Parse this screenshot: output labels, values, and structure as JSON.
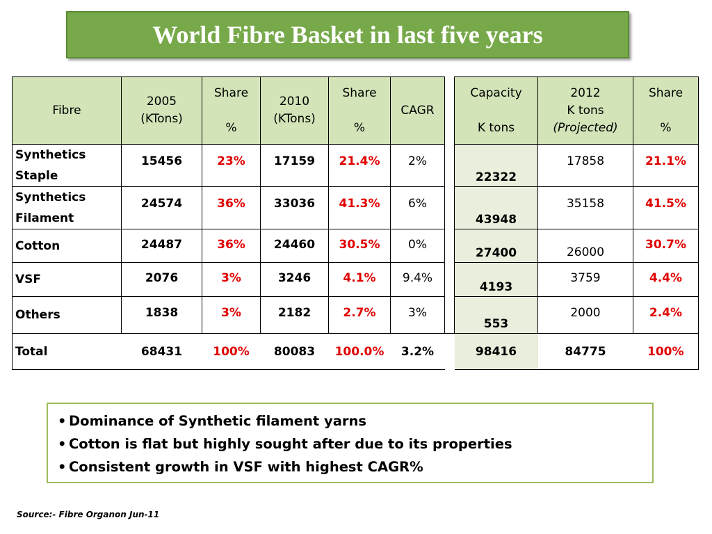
{
  "title": "World Fibre Basket in last five years",
  "colors": {
    "title_bg": "#77a94a",
    "header_bg": "#d3e4b8",
    "capacity_bg": "#e8efdc",
    "share_red": "#e00000",
    "notes_border": "#9bbb59"
  },
  "table": {
    "headers": {
      "fibre": "Fibre",
      "y2005_l1": "2005",
      "y2005_l2": "(KTons)",
      "share_l1": "Share",
      "share_l2": "%",
      "y2010_l1": "2010",
      "y2010_l2": "(KTons)",
      "cagr": "CAGR",
      "capacity_l1": "Capacity",
      "capacity_l2": "K tons",
      "y2012_l1": "2012",
      "y2012_l2": "K tons",
      "y2012_l3": "(Projected)"
    },
    "rows": [
      {
        "fibre_l1": "Synthetics",
        "fibre_l2": "Staple",
        "v2005": "15456",
        "s2005": "23%",
        "v2010": "17159",
        "s2010": "21.4%",
        "cagr": "2%",
        "capacity": "22322",
        "v2012": "17858",
        "s2012": "21.1%"
      },
      {
        "fibre_l1": "Synthetics",
        "fibre_l2": "Filament",
        "v2005": "24574",
        "s2005": "36%",
        "v2010": "33036",
        "s2010": "41.3%",
        "cagr": "6%",
        "capacity": "43948",
        "v2012": "35158",
        "s2012": "41.5%"
      },
      {
        "fibre": "Cotton",
        "v2005": "24487",
        "s2005": "36%",
        "v2010": "24460",
        "s2010": "30.5%",
        "cagr": "0%",
        "capacity": "27400",
        "v2012": "26000",
        "s2012": "30.7%"
      },
      {
        "fibre": "VSF",
        "v2005": "2076",
        "s2005": "3%",
        "v2010": "3246",
        "s2010": "4.1%",
        "cagr": "9.4%",
        "capacity": "4193",
        "v2012": "3759",
        "s2012": "4.4%"
      },
      {
        "fibre": "Others",
        "v2005": "1838",
        "s2005": "3%",
        "v2010": "2182",
        "s2010": "2.7%",
        "cagr": "3%",
        "capacity": "553",
        "v2012": "2000",
        "s2012": "2.4%"
      }
    ],
    "total": {
      "fibre": "Total",
      "v2005": "68431",
      "s2005": "100%",
      "v2010": "80083",
      "s2010": "100.0%",
      "cagr": "3.2%",
      "capacity": "98416",
      "v2012": "84775",
      "s2012": "100%"
    }
  },
  "notes": [
    "Dominance of Synthetic filament yarns",
    "Cotton is flat but highly sought after due to its properties",
    "Consistent growth in VSF with highest CAGR%"
  ],
  "bullet": "•",
  "source": "Source:- Fibre Organon Jun-11"
}
